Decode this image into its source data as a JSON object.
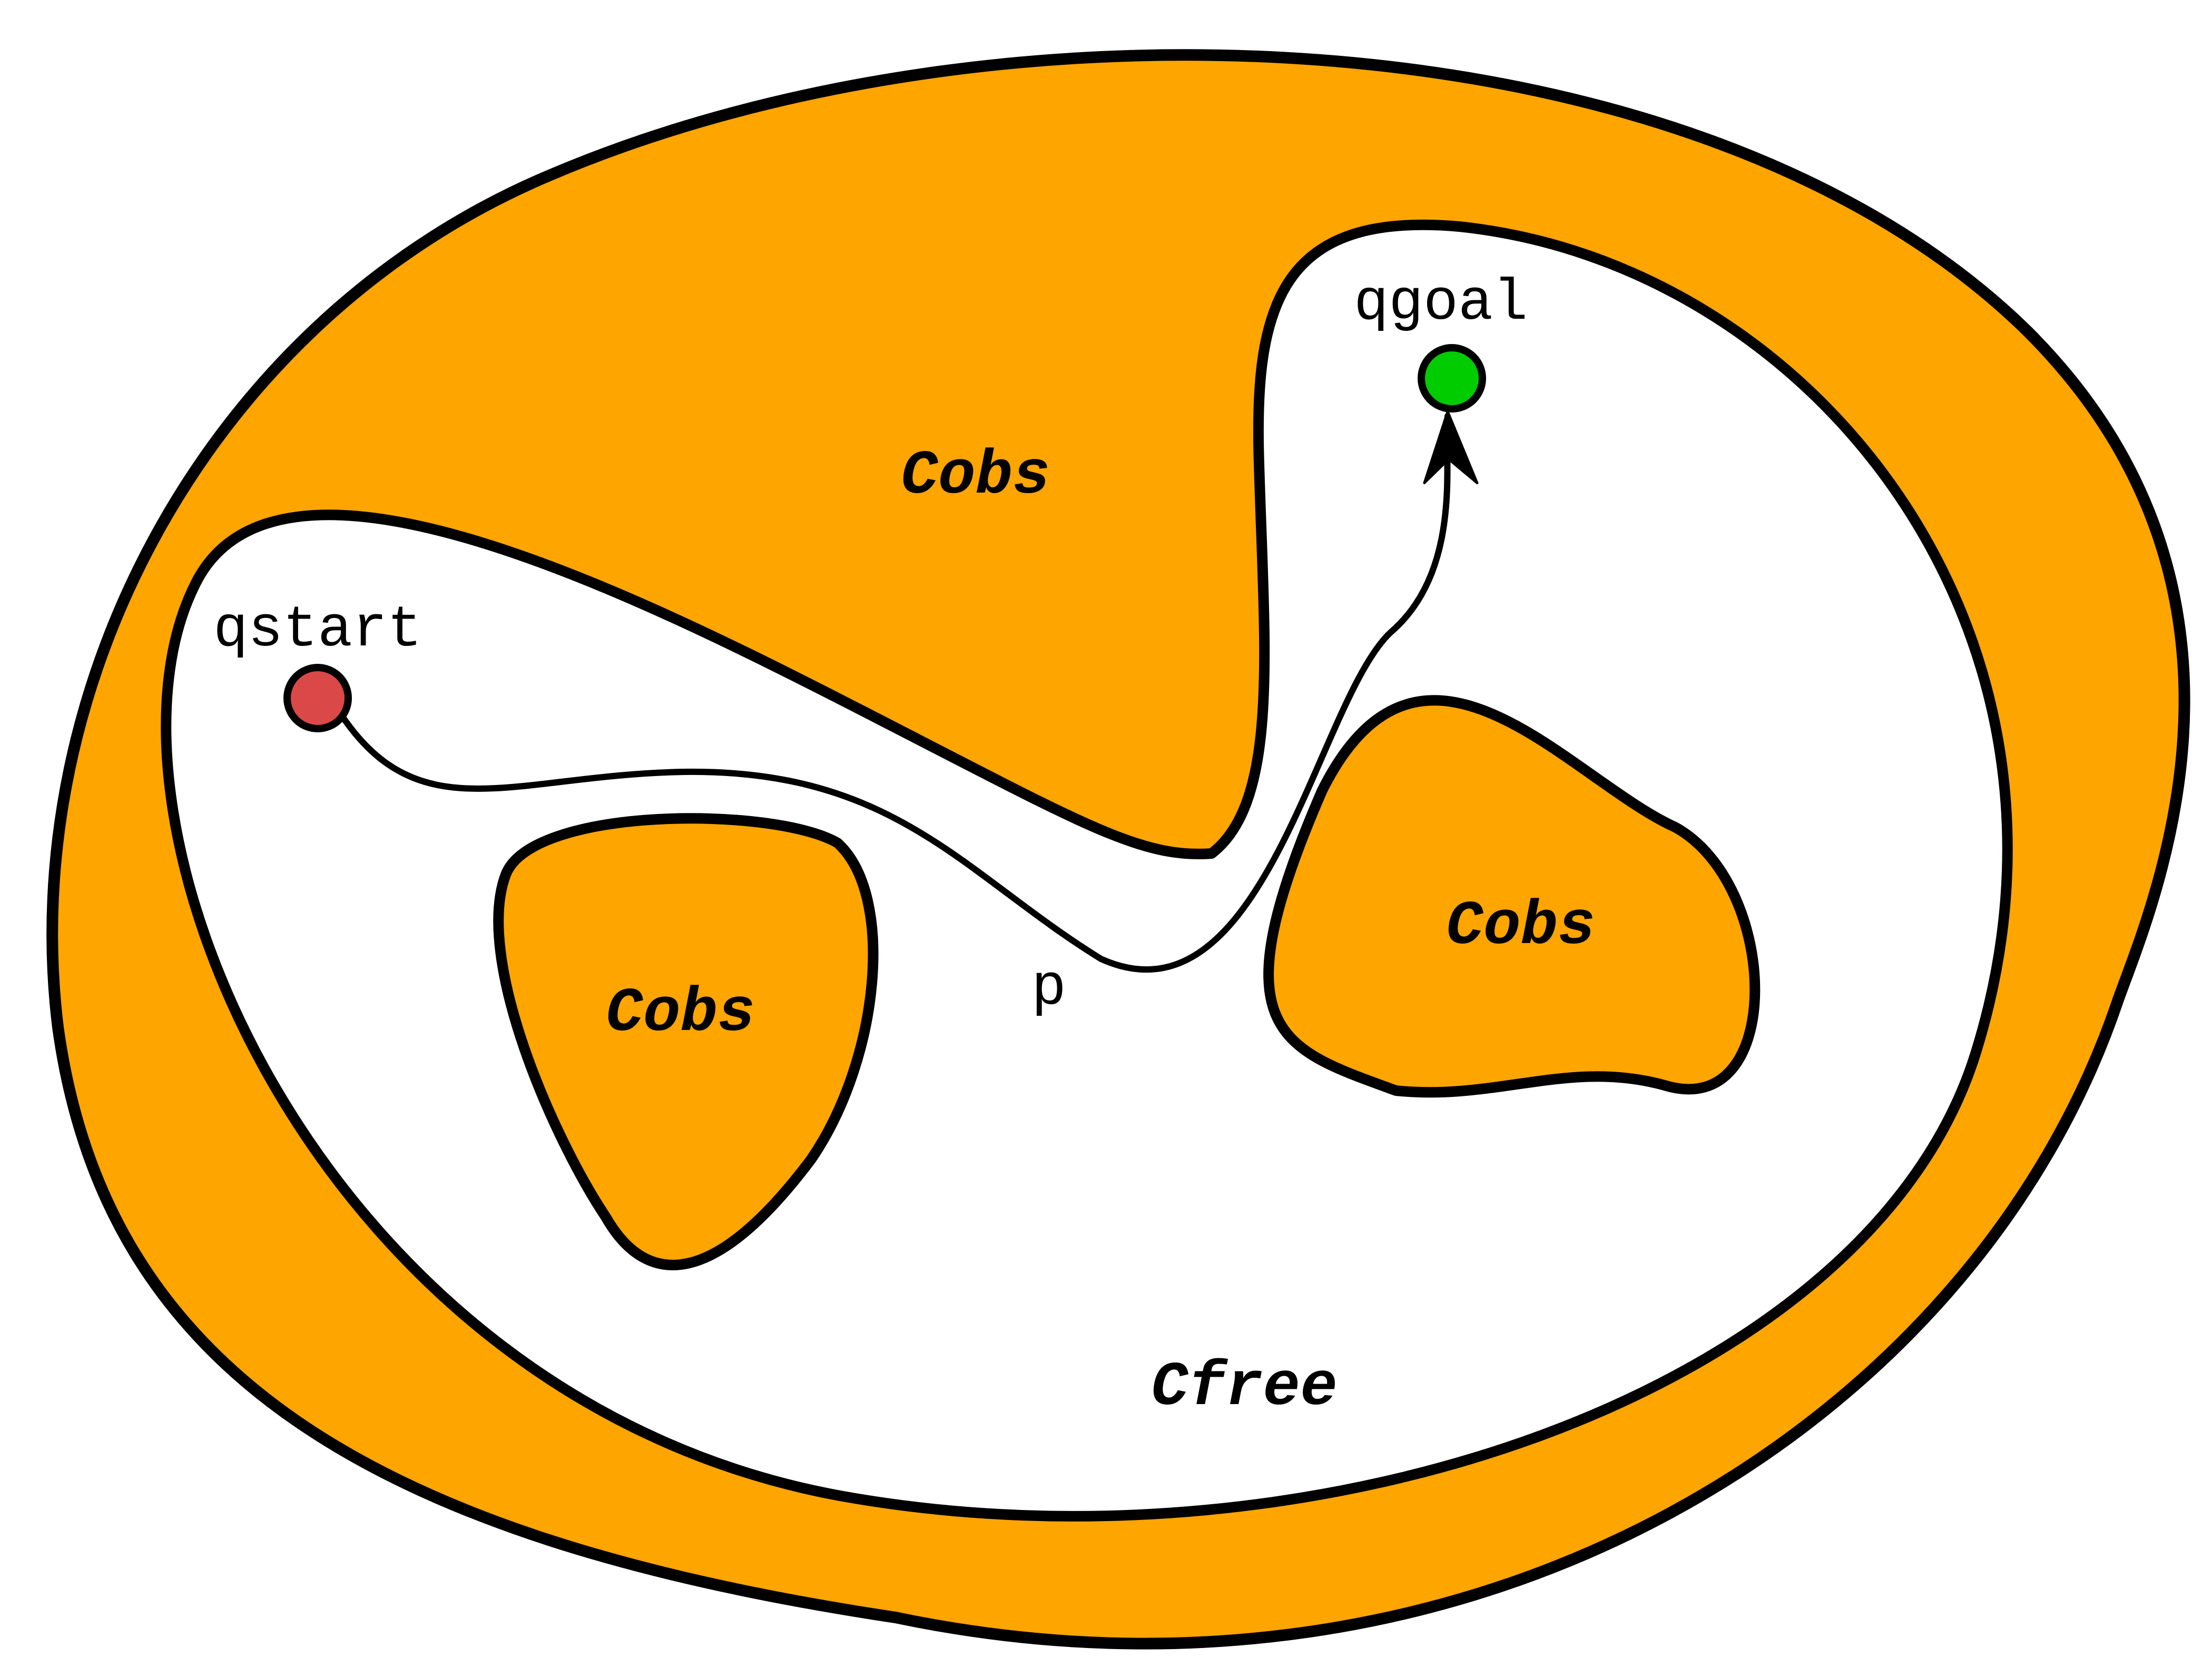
{
  "colors": {
    "obstacle_fill": "#FFA500",
    "free_fill": "#FFFFFF",
    "outline": "#000000",
    "start_marker": "#DB4848",
    "goal_marker": "#00CC00"
  },
  "labels": {
    "obstacle_top": "Cobs",
    "obstacle_left": "Cobs",
    "obstacle_right": "Cobs",
    "free_space": "Cfree",
    "start": "qstart",
    "goal": "qgoal",
    "path": "p"
  }
}
